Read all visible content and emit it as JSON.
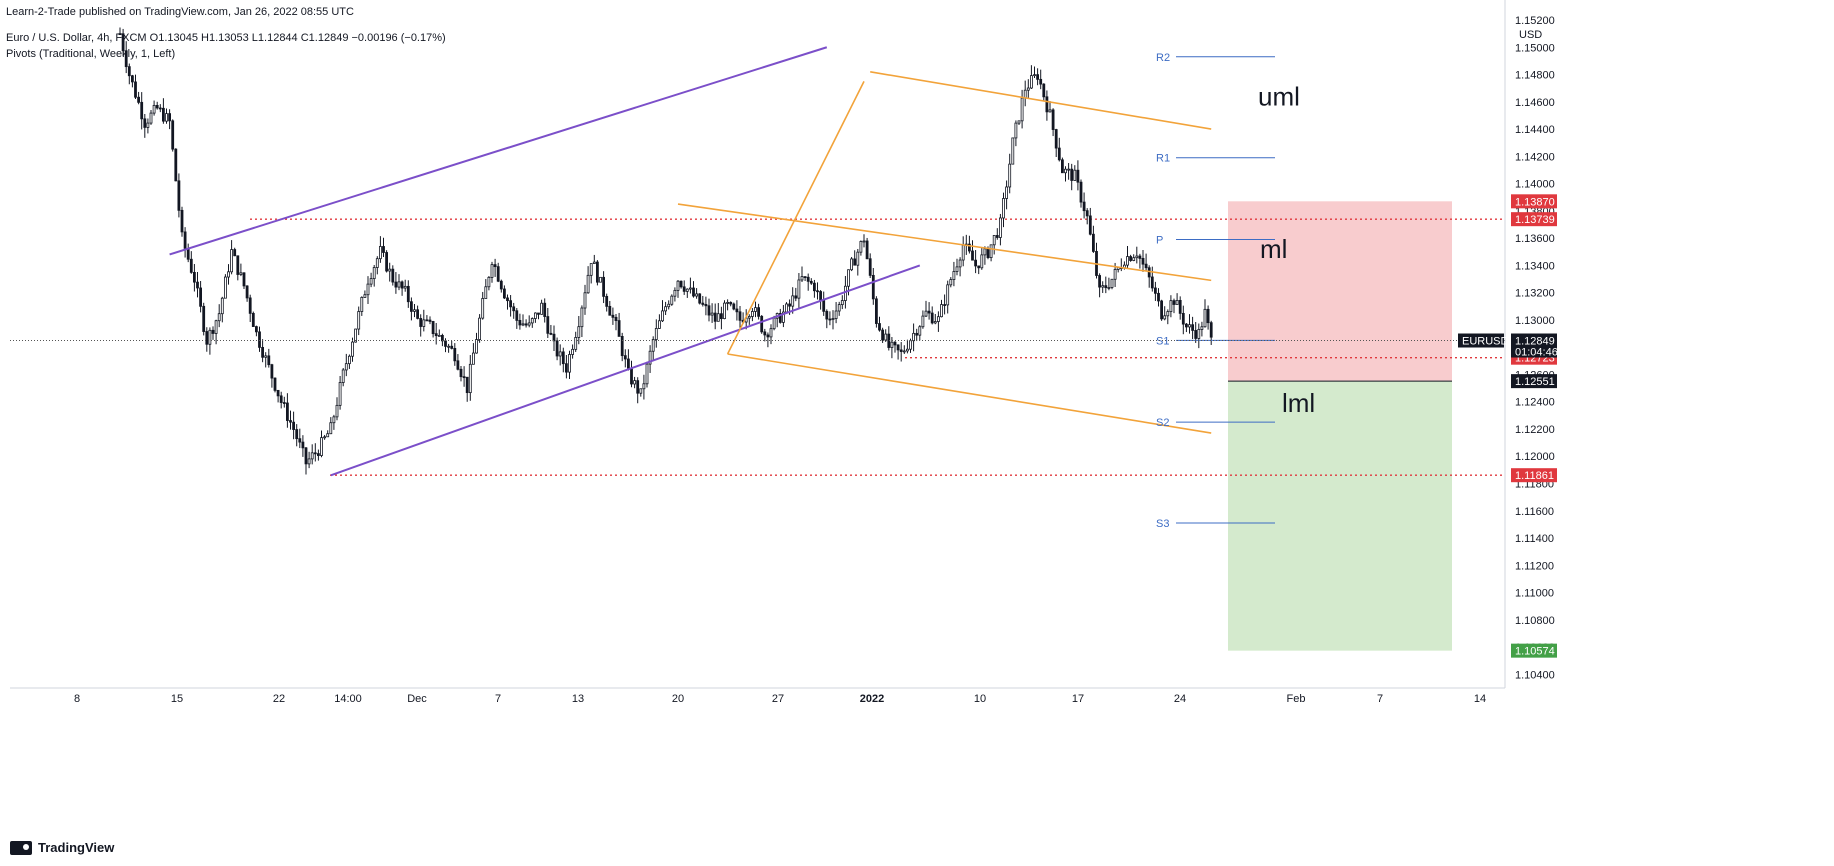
{
  "header": {
    "published": "Learn-2-Trade published on TradingView.com, Jan 26, 2022 08:55 UTC",
    "symbol_line": "Euro / U.S. Dollar, 4h, FXCM  O1.13045  H1.13053  L1.12844  C1.12849  −0.00196 (−0.17%)",
    "pivots_line": "Pivots (Traditional, Weekly, 1, Left)"
  },
  "footer": {
    "brand": "TradingView"
  },
  "colors": {
    "up": "#131722",
    "down": "#131722",
    "purple": "#7b4fc9",
    "orange": "#f2a33a",
    "red_dotted": "#e0383e",
    "pivot": "#3d6cc4",
    "stop_zone": "#f7c6c9",
    "target_zone": "#cfe8c8"
  },
  "chart_data": {
    "type": "candlestick",
    "title": "Euro / U.S. Dollar, 4h, FXCM",
    "currency": "USD",
    "ylim": [
      1.103,
      1.152
    ],
    "y_ticks": [
      "1.15200",
      "1.15000",
      "1.14800",
      "1.14600",
      "1.14400",
      "1.14200",
      "1.14000",
      "1.13800",
      "1.13600",
      "1.13400",
      "1.13200",
      "1.13000",
      "1.12800",
      "1.12600",
      "1.12400",
      "1.12200",
      "1.12000",
      "1.11800",
      "1.11600",
      "1.11400",
      "1.11200",
      "1.11000",
      "1.10800",
      "1.10600",
      "1.10400"
    ],
    "x_ticks": [
      "8",
      "15",
      "22",
      "14:00",
      "Dec",
      "7",
      "13",
      "20",
      "27",
      "2022",
      "10",
      "17",
      "24",
      "Feb",
      "7",
      "14"
    ],
    "close_path": [
      {
        "i": 0,
        "v": 1.151
      },
      {
        "i": 3,
        "v": 1.148
      },
      {
        "i": 8,
        "v": 1.1445
      },
      {
        "i": 12,
        "v": 1.1455
      },
      {
        "i": 16,
        "v": 1.1445
      },
      {
        "i": 20,
        "v": 1.136
      },
      {
        "i": 24,
        "v": 1.133
      },
      {
        "i": 28,
        "v": 1.1285
      },
      {
        "i": 32,
        "v": 1.1305
      },
      {
        "i": 36,
        "v": 1.135
      },
      {
        "i": 40,
        "v": 1.1325
      },
      {
        "i": 44,
        "v": 1.129
      },
      {
        "i": 48,
        "v": 1.1265
      },
      {
        "i": 52,
        "v": 1.124
      },
      {
        "i": 56,
        "v": 1.122
      },
      {
        "i": 60,
        "v": 1.1195
      },
      {
        "i": 64,
        "v": 1.1205
      },
      {
        "i": 68,
        "v": 1.122
      },
      {
        "i": 72,
        "v": 1.126
      },
      {
        "i": 76,
        "v": 1.1295
      },
      {
        "i": 80,
        "v": 1.133
      },
      {
        "i": 84,
        "v": 1.135
      },
      {
        "i": 88,
        "v": 1.133
      },
      {
        "i": 92,
        "v": 1.132
      },
      {
        "i": 96,
        "v": 1.13
      },
      {
        "i": 100,
        "v": 1.1295
      },
      {
        "i": 104,
        "v": 1.1285
      },
      {
        "i": 108,
        "v": 1.1275
      },
      {
        "i": 112,
        "v": 1.125
      },
      {
        "i": 116,
        "v": 1.13
      },
      {
        "i": 120,
        "v": 1.1345
      },
      {
        "i": 124,
        "v": 1.132
      },
      {
        "i": 128,
        "v": 1.13
      },
      {
        "i": 132,
        "v": 1.1295
      },
      {
        "i": 136,
        "v": 1.131
      },
      {
        "i": 140,
        "v": 1.128
      },
      {
        "i": 144,
        "v": 1.1265
      },
      {
        "i": 148,
        "v": 1.13
      },
      {
        "i": 152,
        "v": 1.1345
      },
      {
        "i": 156,
        "v": 1.132
      },
      {
        "i": 160,
        "v": 1.1295
      },
      {
        "i": 164,
        "v": 1.126
      },
      {
        "i": 168,
        "v": 1.1245
      },
      {
        "i": 172,
        "v": 1.1285
      },
      {
        "i": 176,
        "v": 1.131
      },
      {
        "i": 180,
        "v": 1.133
      },
      {
        "i": 184,
        "v": 1.132
      },
      {
        "i": 188,
        "v": 1.131
      },
      {
        "i": 192,
        "v": 1.13
      },
      {
        "i": 196,
        "v": 1.131
      },
      {
        "i": 200,
        "v": 1.13
      },
      {
        "i": 204,
        "v": 1.131
      },
      {
        "i": 208,
        "v": 1.129
      },
      {
        "i": 212,
        "v": 1.13
      },
      {
        "i": 216,
        "v": 1.131
      },
      {
        "i": 220,
        "v": 1.133
      },
      {
        "i": 224,
        "v": 1.1325
      },
      {
        "i": 228,
        "v": 1.13
      },
      {
        "i": 232,
        "v": 1.131
      },
      {
        "i": 236,
        "v": 1.134
      },
      {
        "i": 240,
        "v": 1.136
      },
      {
        "i": 244,
        "v": 1.13
      },
      {
        "i": 248,
        "v": 1.128
      },
      {
        "i": 252,
        "v": 1.1275
      },
      {
        "i": 256,
        "v": 1.129
      },
      {
        "i": 260,
        "v": 1.1305
      },
      {
        "i": 264,
        "v": 1.13
      },
      {
        "i": 268,
        "v": 1.133
      },
      {
        "i": 272,
        "v": 1.1355
      },
      {
        "i": 276,
        "v": 1.134
      },
      {
        "i": 280,
        "v": 1.135
      },
      {
        "i": 284,
        "v": 1.137
      },
      {
        "i": 288,
        "v": 1.143
      },
      {
        "i": 292,
        "v": 1.147
      },
      {
        "i": 296,
        "v": 1.148
      },
      {
        "i": 300,
        "v": 1.145
      },
      {
        "i": 304,
        "v": 1.141
      },
      {
        "i": 308,
        "v": 1.1405
      },
      {
        "i": 312,
        "v": 1.1375
      },
      {
        "i": 316,
        "v": 1.132
      },
      {
        "i": 320,
        "v": 1.133
      },
      {
        "i": 324,
        "v": 1.1345
      },
      {
        "i": 328,
        "v": 1.135
      },
      {
        "i": 332,
        "v": 1.133
      },
      {
        "i": 336,
        "v": 1.1305
      },
      {
        "i": 340,
        "v": 1.1315
      },
      {
        "i": 344,
        "v": 1.1295
      },
      {
        "i": 348,
        "v": 1.129
      },
      {
        "i": 350,
        "v": 1.1305
      },
      {
        "i": 352,
        "v": 1.12849
      }
    ],
    "n_bars": 353,
    "trend_lines": [
      {
        "name": "channel-top",
        "color": "purple",
        "points": [
          {
            "i": 16,
            "d": "Nov 12",
            "v": 1.1348
          },
          {
            "i": 228,
            "d": "Jan 28",
            "v": 1.15
          }
        ]
      },
      {
        "name": "channel-bottom",
        "color": "purple",
        "points": [
          {
            "i": 68,
            "d": "Nov 24",
            "v": 1.1186
          },
          {
            "i": 258,
            "d": "Jan 22",
            "v": 1.134
          }
        ]
      },
      {
        "name": "pitchfork-upper",
        "color": "orange",
        "points": [
          {
            "i": 242,
            "d": "Jan 14",
            "v": 1.1482
          },
          {
            "i": 352,
            "d": "Feb 15",
            "v": 1.144
          }
        ]
      },
      {
        "name": "pitchfork-median",
        "color": "orange",
        "points": [
          {
            "i": 180,
            "d": "Dec 31",
            "v": 1.1385
          },
          {
            "i": 352,
            "d": "Feb 15",
            "v": 1.1329
          }
        ]
      },
      {
        "name": "pitchfork-lower",
        "color": "orange",
        "points": [
          {
            "i": 196,
            "d": "Jan 3",
            "v": 1.1275
          },
          {
            "i": 352,
            "d": "Feb 15",
            "v": 1.1217
          }
        ]
      },
      {
        "name": "pitchfork-handle",
        "color": "orange",
        "points": [
          {
            "i": 196,
            "v": 1.1275
          },
          {
            "i": 240,
            "v": 1.1475
          }
        ]
      }
    ],
    "horizontal_levels": [
      {
        "name": "resistance",
        "value": 1.13739,
        "label": "1.13739",
        "color": "red_dotted"
      },
      {
        "name": "support",
        "value": 1.11861,
        "label": "1.11861",
        "color": "red_dotted"
      },
      {
        "name": "recent-low",
        "value": 1.12723,
        "label": "1.12723",
        "color": "red_dotted"
      }
    ],
    "pivots": [
      {
        "label": "R2",
        "value": 1.1493
      },
      {
        "label": "R1",
        "value": 1.1419
      },
      {
        "label": "P",
        "value": 1.1359
      },
      {
        "label": "S1",
        "value": 1.1285
      },
      {
        "label": "S2",
        "value": 1.1225
      },
      {
        "label": "S3",
        "value": 1.1151
      }
    ],
    "pitchfork_labels": [
      {
        "text": "uml",
        "value": 1.1464
      },
      {
        "text": "ml",
        "value": 1.1352
      },
      {
        "text": "lml",
        "value": 1.1239
      }
    ],
    "position_tool": {
      "entry": 1.12551,
      "stop": 1.1387,
      "target": 1.10574
    },
    "price_badges": [
      {
        "label": "1.13870",
        "value": 1.1387,
        "color": "#e0383e"
      },
      {
        "label": "1.13739",
        "value": 1.13739,
        "color": "#e0383e"
      },
      {
        "label": "1.12723",
        "value": 1.12723,
        "color": "#e0383e"
      },
      {
        "label": "1.12551",
        "value": 1.12551,
        "color": "#131722"
      },
      {
        "label": "1.11861",
        "value": 1.11861,
        "color": "#e0383e"
      },
      {
        "label": "1.10574",
        "value": 1.10574,
        "color": "#43a047"
      }
    ],
    "current": {
      "symbol": "EURUSD",
      "price": "1.12849",
      "countdown": "01:04:46",
      "value": 1.12849
    }
  }
}
